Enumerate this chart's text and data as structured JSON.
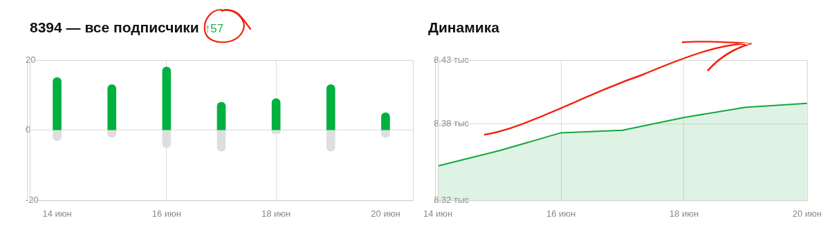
{
  "chart_data": [
    {
      "type": "bar",
      "title": "8394 — все подписчики",
      "subtitle": "↑57",
      "stacked": true,
      "categories": [
        "14 июн",
        null,
        "16 июн",
        null,
        "18 июн",
        null,
        "20 июн"
      ],
      "series": [
        {
          "color": "#00b140",
          "values": [
            15,
            13,
            18,
            8,
            9,
            13,
            5
          ]
        },
        {
          "color": "#dedede",
          "values": [
            -3,
            -2,
            -5,
            -6,
            -1,
            -6,
            -2
          ]
        }
      ],
      "ylim": [
        -20,
        20
      ],
      "yticks": [
        -20,
        0,
        20
      ],
      "grid": true,
      "legend": false
    },
    {
      "type": "area",
      "title": "Динамика",
      "categories": [
        "14 июн",
        null,
        "16 июн",
        null,
        "18 июн",
        null,
        "20 июн"
      ],
      "series": [
        {
          "color": "#10a83a",
          "values": [
            8.347,
            8.359,
            8.373,
            8.375,
            8.385,
            8.393,
            8.396
          ]
        }
      ],
      "ylim": [
        8.32,
        8.43
      ],
      "yticks": [
        {
          "value": 8.32,
          "label": "8.32 тыс"
        },
        {
          "value": 8.38,
          "label": "8.38 тыс"
        },
        {
          "value": 8.43,
          "label": "8.43 тыс"
        }
      ],
      "grid": true,
      "legend": false
    }
  ]
}
